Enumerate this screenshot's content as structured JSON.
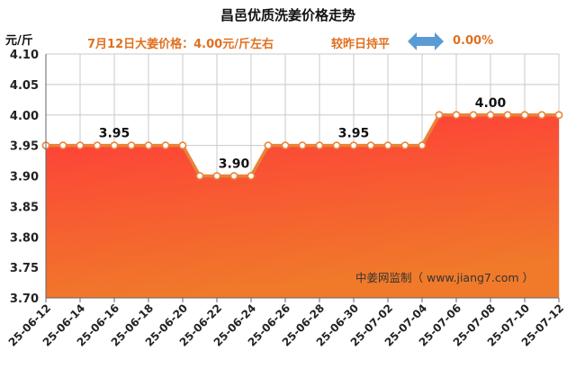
{
  "title": "昌邑优质洗姜价格走势",
  "price_text": "7月12日大姜价格：4.00元/斤左右",
  "change_label": "较昨日持平",
  "change_value": "0.00%",
  "unit": "元/斤",
  "watermark": "中姜网监制（ www.jiang7.com ）",
  "colors": {
    "accent": "#e07020",
    "arrow": "#5b9bd5",
    "line": "#e8833a",
    "fill_top": "#ff3a3a",
    "fill_bottom": "#f07a2a"
  },
  "chart_data": {
    "type": "area",
    "ylim": [
      3.7,
      4.1
    ],
    "yticks": [
      "3.70",
      "3.75",
      "3.80",
      "3.85",
      "3.90",
      "3.95",
      "4.00",
      "4.05",
      "4.10"
    ],
    "x": [
      "25-06-12",
      "25-06-13",
      "25-06-14",
      "25-06-15",
      "25-06-16",
      "25-06-17",
      "25-06-18",
      "25-06-19",
      "25-06-20",
      "25-06-21",
      "25-06-22",
      "25-06-23",
      "25-06-24",
      "25-06-25",
      "25-06-26",
      "25-06-27",
      "25-06-28",
      "25-06-29",
      "25-06-30",
      "25-07-01",
      "25-07-02",
      "25-07-03",
      "25-07-04",
      "25-07-05",
      "25-07-06",
      "25-07-07",
      "25-07-08",
      "25-07-09",
      "25-07-10",
      "25-07-11",
      "25-07-12"
    ],
    "x_tick_labels": [
      "25-06-12",
      "25-06-14",
      "25-06-16",
      "25-06-18",
      "25-06-20",
      "25-06-22",
      "25-06-24",
      "25-06-26",
      "25-06-28",
      "25-06-30",
      "25-07-02",
      "25-07-04",
      "25-07-06",
      "25-07-08",
      "25-07-10",
      "25-07-12"
    ],
    "values": [
      3.95,
      3.95,
      3.95,
      3.95,
      3.95,
      3.95,
      3.95,
      3.95,
      3.95,
      3.9,
      3.9,
      3.9,
      3.9,
      3.95,
      3.95,
      3.95,
      3.95,
      3.95,
      3.95,
      3.95,
      3.95,
      3.95,
      3.95,
      4.0,
      4.0,
      4.0,
      4.0,
      4.0,
      4.0,
      4.0,
      4.0
    ],
    "data_labels": [
      {
        "index": 4,
        "text": "3.95"
      },
      {
        "index": 11,
        "text": "3.90"
      },
      {
        "index": 18,
        "text": "3.95"
      },
      {
        "index": 26,
        "text": "4.00"
      }
    ],
    "grid": true
  }
}
